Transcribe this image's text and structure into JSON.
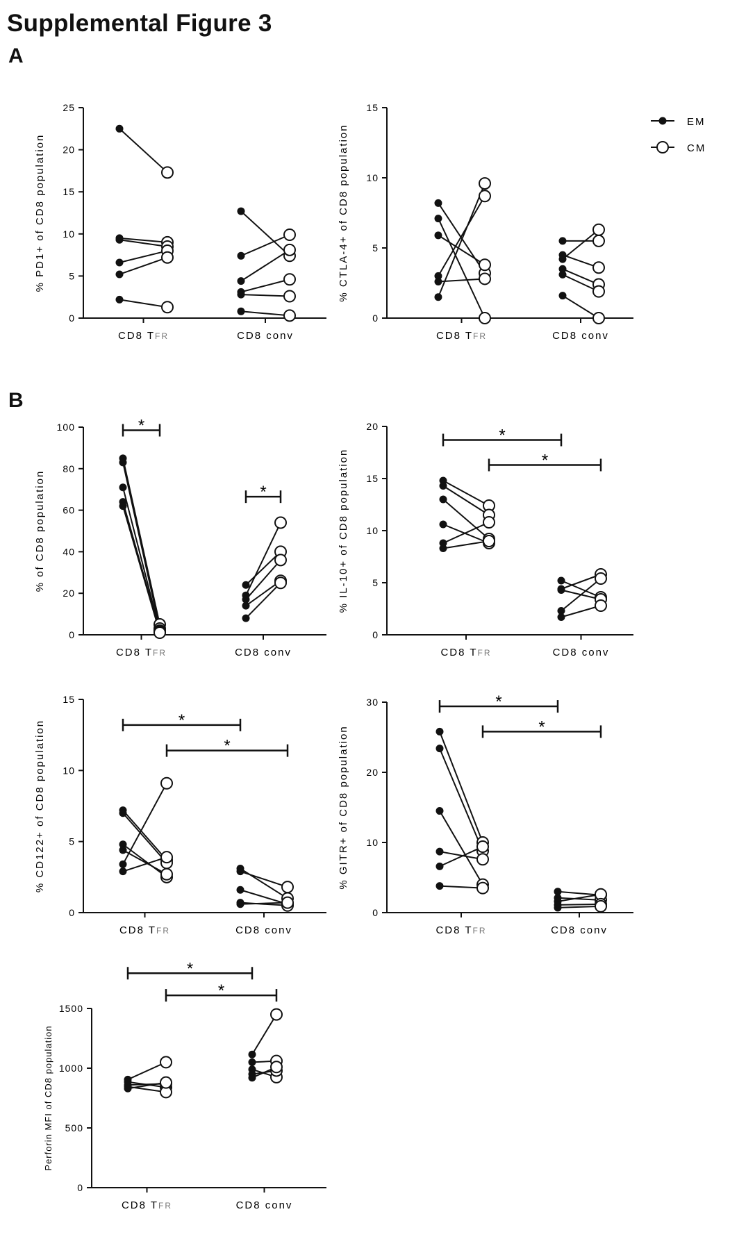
{
  "figure_title": "Supplemental Figure 3",
  "panel_labels": [
    "A",
    "B"
  ],
  "legend": [
    {
      "label": "EM",
      "marker": "filled-circle"
    },
    {
      "label": "CM",
      "marker": "open-circle"
    }
  ],
  "colors": {
    "ink": "#111111",
    "background": "#ffffff"
  },
  "chart_data": [
    {
      "type": "scatter",
      "panel": "A",
      "ylabel": "% PD1+ of CD8 population",
      "categories": [
        {
          "main": "CD8 T",
          "sub": "FR"
        },
        {
          "main": "CD8 conv",
          "sub": ""
        }
      ],
      "ylim": [
        0,
        25
      ],
      "yticks": [
        "0",
        "5",
        "10",
        "15",
        "20",
        "25"
      ],
      "pairs": [
        [
          [
            22.5,
            17.3
          ],
          [
            9.5,
            9.0
          ],
          [
            9.3,
            8.5
          ],
          [
            6.6,
            8.0
          ],
          [
            5.2,
            7.2
          ],
          [
            2.2,
            1.3
          ]
        ],
        [
          [
            12.7,
            7.4
          ],
          [
            7.4,
            9.9
          ],
          [
            4.4,
            8.1
          ],
          [
            3.1,
            4.6
          ],
          [
            2.8,
            2.6
          ],
          [
            0.8,
            0.3
          ]
        ]
      ],
      "brackets": []
    },
    {
      "type": "scatter",
      "panel": "A",
      "ylabel": "% CTLA-4+ of CD8 population",
      "categories": [
        {
          "main": "CD8 T",
          "sub": "FR"
        },
        {
          "main": "CD8 conv",
          "sub": ""
        }
      ],
      "ylim": [
        0,
        15
      ],
      "yticks": [
        "0",
        "5",
        "10",
        "15"
      ],
      "pairs": [
        [
          [
            8.2,
            3.2
          ],
          [
            7.1,
            0.0
          ],
          [
            5.9,
            3.8
          ],
          [
            3.0,
            8.7
          ],
          [
            2.6,
            2.8
          ],
          [
            1.5,
            9.6
          ]
        ],
        [
          [
            5.5,
            5.5
          ],
          [
            4.5,
            3.6
          ],
          [
            4.2,
            6.3
          ],
          [
            3.5,
            2.4
          ],
          [
            3.1,
            1.9
          ],
          [
            1.6,
            0.0
          ]
        ]
      ],
      "brackets": []
    },
    {
      "type": "scatter",
      "panel": "B",
      "ylabel": "% of CD8 population",
      "categories": [
        {
          "main": "CD8 T",
          "sub": "FR"
        },
        {
          "main": "CD8 conv",
          "sub": ""
        }
      ],
      "ylim": [
        0,
        100
      ],
      "yticks": [
        "0",
        "20",
        "40",
        "60",
        "80",
        "100"
      ],
      "pairs": [
        [
          [
            85,
            5
          ],
          [
            83,
            3
          ],
          [
            71,
            2
          ],
          [
            64,
            1.5
          ],
          [
            62,
            1
          ]
        ],
        [
          [
            24,
            40
          ],
          [
            19,
            54
          ],
          [
            17,
            36
          ],
          [
            14,
            26
          ],
          [
            8,
            25
          ]
        ]
      ],
      "brackets": [
        {
          "label": "*",
          "from": [
            0,
            "EM"
          ],
          "to": [
            0,
            "CM"
          ],
          "y": 98.5
        },
        {
          "label": "*",
          "from": [
            1,
            "EM"
          ],
          "to": [
            1,
            "CM"
          ],
          "y": 66.5
        }
      ]
    },
    {
      "type": "scatter",
      "panel": "B",
      "ylabel": "% IL-10+ of CD8 population",
      "categories": [
        {
          "main": "CD8 T",
          "sub": "FR"
        },
        {
          "main": "CD8 conv",
          "sub": ""
        }
      ],
      "ylim": [
        0,
        20
      ],
      "yticks": [
        "0",
        "5",
        "10",
        "15",
        "20"
      ],
      "pairs": [
        [
          [
            14.8,
            12.4
          ],
          [
            14.3,
            11.5
          ],
          [
            13.0,
            9.2
          ],
          [
            10.6,
            8.8
          ],
          [
            8.8,
            10.8
          ],
          [
            8.3,
            9.0
          ]
        ],
        [
          [
            5.2,
            3.6
          ],
          [
            4.4,
            5.8
          ],
          [
            4.3,
            3.4
          ],
          [
            2.3,
            5.4
          ],
          [
            1.7,
            2.8
          ]
        ]
      ],
      "brackets": [
        {
          "label": "*",
          "from": [
            0,
            "EM"
          ],
          "to": [
            1,
            "EM"
          ],
          "y": 18.7
        },
        {
          "label": "*",
          "from": [
            0,
            "CM"
          ],
          "to": [
            1,
            "CM"
          ],
          "y": 16.3
        }
      ]
    },
    {
      "type": "scatter",
      "panel": "B",
      "ylabel": "% CD122+ of CD8 population",
      "categories": [
        {
          "main": "CD8 T",
          "sub": "FR"
        },
        {
          "main": "CD8 conv",
          "sub": ""
        }
      ],
      "ylim": [
        0,
        15
      ],
      "yticks": [
        "0",
        "5",
        "10",
        "15"
      ],
      "pairs": [
        [
          [
            7.2,
            3.7
          ],
          [
            7.0,
            3.5
          ],
          [
            4.8,
            2.5
          ],
          [
            4.4,
            2.7
          ],
          [
            3.4,
            9.1
          ],
          [
            2.9,
            3.9
          ]
        ],
        [
          [
            3.1,
            1.0
          ],
          [
            2.9,
            1.8
          ],
          [
            1.6,
            0.6
          ],
          [
            0.7,
            0.5
          ],
          [
            0.6,
            0.7
          ]
        ]
      ],
      "brackets": [
        {
          "label": "*",
          "from": [
            0,
            "EM"
          ],
          "to": [
            1,
            "EM"
          ],
          "y": 13.2
        },
        {
          "label": "*",
          "from": [
            0,
            "CM"
          ],
          "to": [
            1,
            "CM"
          ],
          "y": 11.4
        }
      ]
    },
    {
      "type": "scatter",
      "panel": "B",
      "ylabel": "% GITR+ of CD8 population",
      "categories": [
        {
          "main": "CD8 T",
          "sub": "FR"
        },
        {
          "main": "CD8 conv",
          "sub": ""
        }
      ],
      "ylim": [
        0,
        30
      ],
      "yticks": [
        "0",
        "10",
        "20",
        "30"
      ],
      "pairs": [
        [
          [
            25.8,
            10.0
          ],
          [
            23.4,
            8.8
          ],
          [
            14.5,
            4.0
          ],
          [
            8.7,
            7.6
          ],
          [
            6.6,
            9.4
          ],
          [
            3.8,
            3.5
          ]
        ],
        [
          [
            3.0,
            2.5
          ],
          [
            2.1,
            1.8
          ],
          [
            1.6,
            2.6
          ],
          [
            1.1,
            1.2
          ],
          [
            0.7,
            0.9
          ]
        ]
      ],
      "brackets": [
        {
          "label": "*",
          "from": [
            0,
            "EM"
          ],
          "to": [
            1,
            "EM"
          ],
          "y": 29.4
        },
        {
          "label": "*",
          "from": [
            0,
            "CM"
          ],
          "to": [
            1,
            "CM"
          ],
          "y": 25.8
        }
      ]
    },
    {
      "type": "scatter",
      "panel": "B",
      "ylabel": "Perforin MFI of CD8 population",
      "categories": [
        {
          "main": "CD8 T",
          "sub": "FR"
        },
        {
          "main": "CD8 conv",
          "sub": ""
        }
      ],
      "ylim": [
        0,
        1500
      ],
      "yticks": [
        "0",
        "500",
        "1000",
        "1500"
      ],
      "pairs": [
        [
          [
            905,
            1050
          ],
          [
            885,
            840
          ],
          [
            860,
            870
          ],
          [
            845,
            800
          ],
          [
            830,
            880
          ]
        ],
        [
          [
            1115,
            1450
          ],
          [
            1050,
            1060
          ],
          [
            990,
            925
          ],
          [
            950,
            980
          ],
          [
            920,
            1010
          ]
        ]
      ],
      "brackets": [
        {
          "label": "*",
          "from": [
            0,
            "EM"
          ],
          "to": [
            1,
            "EM"
          ],
          "y": 1795
        },
        {
          "label": "*",
          "from": [
            0,
            "CM"
          ],
          "to": [
            1,
            "CM"
          ],
          "y": 1610
        }
      ]
    }
  ]
}
